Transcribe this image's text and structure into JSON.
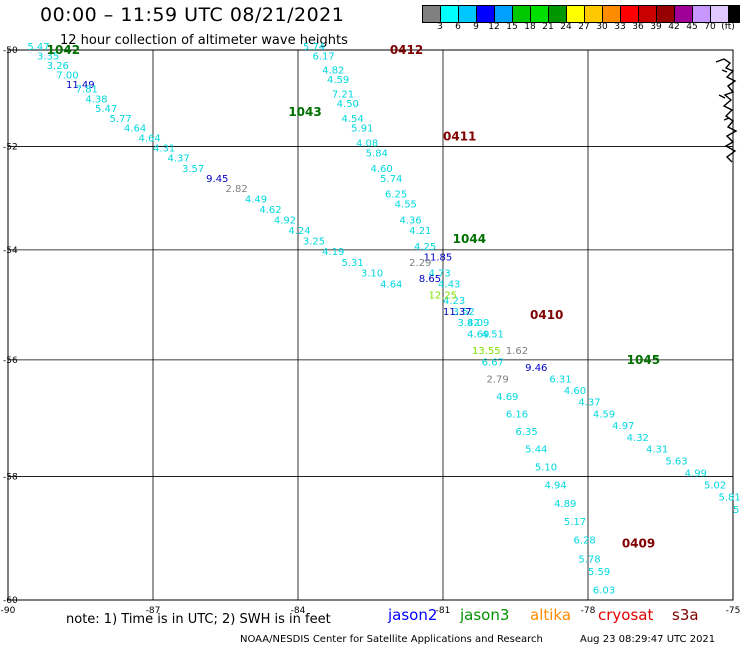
{
  "title": "00:00 – 11:59 UTC 08/21/2021",
  "subtitle": "12 hour collection of altimeter wave heights",
  "colorbar": {
    "colors": [
      "#808080",
      "#00ffff",
      "#00c8ff",
      "#0000ff",
      "#00a0ff",
      "#00c800",
      "#00e000",
      "#009600",
      "#ffff00",
      "#ffc800",
      "#ff8c00",
      "#ff0000",
      "#c80000",
      "#960000",
      "#a00096",
      "#c896ff",
      "#e0c8ff",
      "#000000"
    ],
    "labels": [
      "3",
      "6",
      "9",
      "12",
      "15",
      "18",
      "21",
      "24",
      "27",
      "30",
      "33",
      "36",
      "39",
      "42",
      "45",
      "70",
      "(ft)"
    ]
  },
  "x_ticks": [
    "-90",
    "-87",
    "-84",
    "-81",
    "-78",
    "-75"
  ],
  "y_ticks": [
    "-50",
    "-52",
    "-54",
    "-56",
    "-58",
    "-60"
  ],
  "passes": [
    {
      "id": "1042",
      "color": "#007000",
      "lon": -89.2,
      "lat": -50.0
    },
    {
      "id": "1043",
      "color": "#007000",
      "lon": -84.2,
      "lat": -51.3
    },
    {
      "id": "0412",
      "color": "#800000",
      "lon": -82.1,
      "lat": -50.0
    },
    {
      "id": "0411",
      "color": "#800000",
      "lon": -81.0,
      "lat": -51.8
    },
    {
      "id": "1044",
      "color": "#007000",
      "lon": -80.8,
      "lat": -53.8
    },
    {
      "id": "0410",
      "color": "#800000",
      "lon": -79.2,
      "lat": -55.2
    },
    {
      "id": "1045",
      "color": "#007000",
      "lon": -77.2,
      "lat": -56.0
    },
    {
      "id": "0409",
      "color": "#800000",
      "lon": -77.3,
      "lat": -59.1
    }
  ],
  "track_1042": [
    {
      "lon": -89.6,
      "lat": -50.0,
      "v": "5.47",
      "c": "#00d8e0"
    },
    {
      "lon": -89.4,
      "lat": -50.2,
      "v": "3.35",
      "c": "#00d8e0"
    },
    {
      "lon": -89.2,
      "lat": -50.4,
      "v": "3.26",
      "c": "#00d8e0"
    },
    {
      "lon": -89.0,
      "lat": -50.6,
      "v": "7.00",
      "c": "#00d8e0"
    },
    {
      "lon": -88.8,
      "lat": -50.8,
      "v": "11.49",
      "c": "#0000c0"
    },
    {
      "lon": -88.6,
      "lat": -50.9,
      "v": "7.81",
      "c": "#00d8e0"
    },
    {
      "lon": -88.4,
      "lat": -51.1,
      "v": "4.38",
      "c": "#00d8e0"
    },
    {
      "lon": -88.2,
      "lat": -51.3,
      "v": "5.47",
      "c": "#00d8e0"
    },
    {
      "lon": -87.9,
      "lat": -51.5,
      "v": "5.77",
      "c": "#00d8e0"
    },
    {
      "lon": -87.6,
      "lat": -51.7,
      "v": "4.64",
      "c": "#00d8e0"
    },
    {
      "lon": -87.3,
      "lat": -51.9,
      "v": "4.64",
      "c": "#00d8e0"
    },
    {
      "lon": -87.0,
      "lat": -52.1,
      "v": "4.31",
      "c": "#00d8e0"
    },
    {
      "lon": -86.7,
      "lat": -52.3,
      "v": "4.37",
      "c": "#00d8e0"
    },
    {
      "lon": -86.4,
      "lat": -52.5,
      "v": "3.57",
      "c": "#00d8e0"
    },
    {
      "lon": -85.9,
      "lat": -52.7,
      "v": "9.45",
      "c": "#0000c0"
    },
    {
      "lon": -85.5,
      "lat": -52.9,
      "v": "2.82",
      "c": "#808080"
    },
    {
      "lon": -85.1,
      "lat": -53.1,
      "v": "4.49",
      "c": "#00d8e0"
    },
    {
      "lon": -84.8,
      "lat": -53.3,
      "v": "4.62",
      "c": "#00d8e0"
    },
    {
      "lon": -84.5,
      "lat": -53.5,
      "v": "4.92",
      "c": "#00d8e0"
    },
    {
      "lon": -84.2,
      "lat": -53.7,
      "v": "4.24",
      "c": "#00d8e0"
    },
    {
      "lon": -83.9,
      "lat": -53.9,
      "v": "3.25",
      "c": "#00d8e0"
    },
    {
      "lon": -83.5,
      "lat": -54.1,
      "v": "4.19",
      "c": "#00d8e0"
    },
    {
      "lon": -83.1,
      "lat": -54.3,
      "v": "5.31",
      "c": "#00d8e0"
    },
    {
      "lon": -82.7,
      "lat": -54.5,
      "v": "3.10",
      "c": "#00d8e0"
    },
    {
      "lon": -82.3,
      "lat": -54.7,
      "v": "4.64",
      "c": "#00d8e0"
    }
  ],
  "track_0412": [
    {
      "lon": -83.9,
      "lat": -50.0,
      "v": "5.74",
      "c": "#00d8e0"
    },
    {
      "lon": -83.7,
      "lat": -50.2,
      "v": "6.17",
      "c": "#00d8e0"
    },
    {
      "lon": -83.5,
      "lat": -50.5,
      "v": "4.82",
      "c": "#00d8e0"
    },
    {
      "lon": -83.4,
      "lat": -50.7,
      "v": "4.59",
      "c": "#00d8e0"
    },
    {
      "lon": -83.3,
      "lat": -51.0,
      "v": "7.21",
      "c": "#00d8e0"
    },
    {
      "lon": -83.2,
      "lat": -51.2,
      "v": "4.50",
      "c": "#00d8e0"
    },
    {
      "lon": -83.1,
      "lat": -51.5,
      "v": "4.54",
      "c": "#00d8e0"
    },
    {
      "lon": -82.9,
      "lat": -51.7,
      "v": "5.91",
      "c": "#00d8e0"
    },
    {
      "lon": -82.8,
      "lat": -52.0,
      "v": "4.08",
      "c": "#00d8e0"
    },
    {
      "lon": -82.6,
      "lat": -52.2,
      "v": "5.84",
      "c": "#00d8e0"
    },
    {
      "lon": -82.5,
      "lat": -52.5,
      "v": "4.60",
      "c": "#00d8e0"
    },
    {
      "lon": -82.3,
      "lat": -52.7,
      "v": "5.74",
      "c": "#00d8e0"
    },
    {
      "lon": -82.2,
      "lat": -53.0,
      "v": "6.25",
      "c": "#00d8e0"
    },
    {
      "lon": -82.0,
      "lat": -53.2,
      "v": "4.55",
      "c": "#00d8e0"
    },
    {
      "lon": -81.9,
      "lat": -53.5,
      "v": "4.36",
      "c": "#00d8e0"
    },
    {
      "lon": -81.7,
      "lat": -53.7,
      "v": "4.21",
      "c": "#00d8e0"
    },
    {
      "lon": -81.6,
      "lat": -54.0,
      "v": "4.25",
      "c": "#00d8e0"
    },
    {
      "lon": -81.4,
      "lat": -54.2,
      "v": "11.85",
      "c": "#0000c0"
    },
    {
      "lon": -81.3,
      "lat": -54.5,
      "v": "4.73",
      "c": "#00d8e0"
    },
    {
      "lon": -81.1,
      "lat": -54.7,
      "v": "4.43",
      "c": "#00d8e0"
    },
    {
      "lon": -81.0,
      "lat": -55.0,
      "v": "4.23",
      "c": "#00d8e0"
    },
    {
      "lon": -80.8,
      "lat": -55.2,
      "v": "3.52",
      "c": "#00d8e0"
    },
    {
      "lon": -80.5,
      "lat": -55.4,
      "v": "4.09",
      "c": "#00d8e0"
    },
    {
      "lon": -80.2,
      "lat": -55.6,
      "v": "4.51",
      "c": "#00d8e0"
    },
    {
      "lon": -79.7,
      "lat": -55.9,
      "v": "1.62",
      "c": "#808080"
    },
    {
      "lon": -79.3,
      "lat": -56.2,
      "v": "9.46",
      "c": "#0000c0"
    },
    {
      "lon": -78.8,
      "lat": -56.4,
      "v": "6.31",
      "c": "#00d8e0"
    },
    {
      "lon": -78.5,
      "lat": -56.6,
      "v": "4.60",
      "c": "#00d8e0"
    },
    {
      "lon": -78.2,
      "lat": -56.8,
      "v": "4.37",
      "c": "#00d8e0"
    },
    {
      "lon": -77.9,
      "lat": -57.0,
      "v": "4.59",
      "c": "#00d8e0"
    },
    {
      "lon": -77.5,
      "lat": -57.2,
      "v": "4.97",
      "c": "#00d8e0"
    },
    {
      "lon": -77.2,
      "lat": -57.4,
      "v": "4.32",
      "c": "#00d8e0"
    },
    {
      "lon": -76.8,
      "lat": -57.6,
      "v": "4.31",
      "c": "#00d8e0"
    },
    {
      "lon": -76.4,
      "lat": -57.8,
      "v": "5.63",
      "c": "#00d8e0"
    },
    {
      "lon": -76.0,
      "lat": -58.0,
      "v": "4.99",
      "c": "#00d8e0"
    },
    {
      "lon": -75.6,
      "lat": -58.2,
      "v": "5.02",
      "c": "#00d8e0"
    },
    {
      "lon": -75.3,
      "lat": -58.4,
      "v": "5.81",
      "c": "#00d8e0"
    },
    {
      "lon": -75.0,
      "lat": -58.6,
      "v": "5.45",
      "c": "#00d8e0"
    }
  ],
  "track_1044": [
    {
      "lon": -81.7,
      "lat": -54.3,
      "v": "2.29",
      "c": "#808080"
    },
    {
      "lon": -81.5,
      "lat": -54.6,
      "v": "8.65",
      "c": "#0000c0"
    },
    {
      "lon": -81.3,
      "lat": -54.9,
      "v": "12.25",
      "c": "#80e000"
    },
    {
      "lon": -81.0,
      "lat": -55.2,
      "v": "11.37",
      "c": "#0000c0"
    },
    {
      "lon": -80.7,
      "lat": -55.4,
      "v": "3.82",
      "c": "#00d8e0"
    },
    {
      "lon": -80.5,
      "lat": -55.6,
      "v": "4.69",
      "c": "#00d8e0"
    },
    {
      "lon": -80.4,
      "lat": -55.9,
      "v": "13.55",
      "c": "#80e000"
    },
    {
      "lon": -80.2,
      "lat": -56.1,
      "v": "6.67",
      "c": "#00d8e0"
    },
    {
      "lon": -80.1,
      "lat": -56.4,
      "v": "2.79",
      "c": "#808080"
    },
    {
      "lon": -79.9,
      "lat": -56.7,
      "v": "4.69",
      "c": "#00d8e0"
    },
    {
      "lon": -79.7,
      "lat": -57.0,
      "v": "6.16",
      "c": "#00d8e0"
    },
    {
      "lon": -79.5,
      "lat": -57.3,
      "v": "6.35",
      "c": "#00d8e0"
    },
    {
      "lon": -79.3,
      "lat": -57.6,
      "v": "5.44",
      "c": "#00d8e0"
    },
    {
      "lon": -79.1,
      "lat": -57.9,
      "v": "5.10",
      "c": "#00d8e0"
    },
    {
      "lon": -78.9,
      "lat": -58.2,
      "v": "4.94",
      "c": "#00d8e0"
    },
    {
      "lon": -78.7,
      "lat": -58.5,
      "v": "4.89",
      "c": "#00d8e0"
    },
    {
      "lon": -78.5,
      "lat": -58.8,
      "v": "5.17",
      "c": "#00d8e0"
    },
    {
      "lon": -78.3,
      "lat": -59.1,
      "v": "6.28",
      "c": "#00d8e0"
    },
    {
      "lon": -78.2,
      "lat": -59.4,
      "v": "5.78",
      "c": "#00d8e0"
    },
    {
      "lon": -78.0,
      "lat": -59.6,
      "v": "5.59",
      "c": "#00d8e0"
    },
    {
      "lon": -77.9,
      "lat": -59.9,
      "v": "6.03",
      "c": "#00d8e0"
    },
    {
      "lon": -77.8,
      "lat": -60.1,
      "v": "5.46",
      "c": "#00d8e0"
    },
    {
      "lon": -77.6,
      "lat": -60.3,
      "v": "6.57",
      "c": "#00d8e0"
    },
    {
      "lon": -77.4,
      "lat": -60.6,
      "v": "5.99",
      "c": "#00d8e0"
    },
    {
      "lon": -77.2,
      "lat": -60.9,
      "v": "5.72",
      "c": "#00d8e0"
    },
    {
      "lon": -77.0,
      "lat": -61.1,
      "v": "5.88",
      "c": "#00d8e0"
    },
    {
      "lon": -76.9,
      "lat": -61.4,
      "v": "6.24",
      "c": "#00d8e0"
    }
  ],
  "note": "note: 1) Time is in UTC; 2) SWH is in feet",
  "satellites": [
    {
      "name": "jason2",
      "color": "#0000ff"
    },
    {
      "name": "jason3",
      "color": "#009000"
    },
    {
      "name": "altika",
      "color": "#ff8c00"
    },
    {
      "name": "cryosat",
      "color": "#e00000"
    },
    {
      "name": "s3a",
      "color": "#800000"
    }
  ],
  "footer_left": "NOAA/NESDIS Center for Satellite Applications and Research",
  "footer_right": "Aug 23 08:29:47 UTC 2021"
}
